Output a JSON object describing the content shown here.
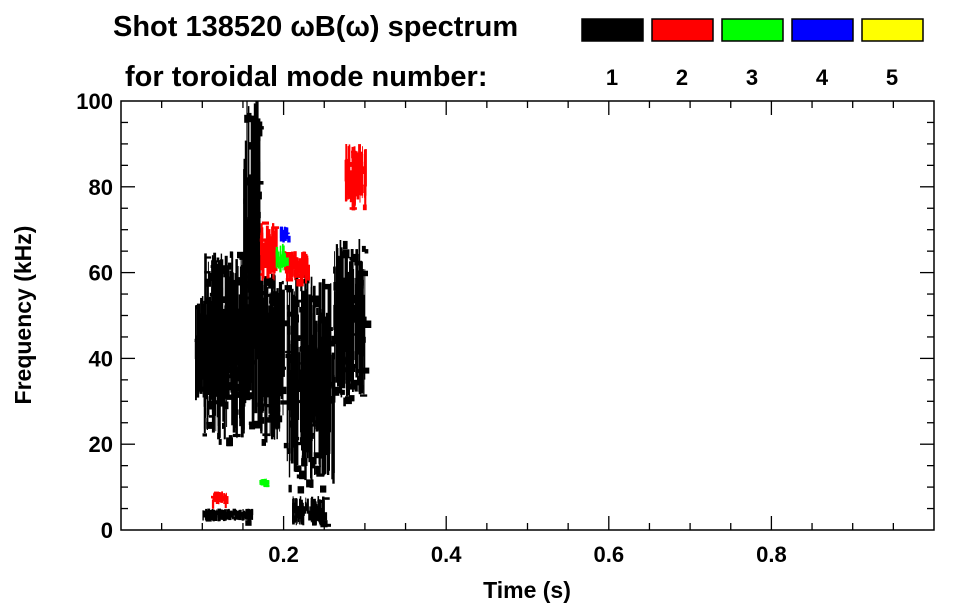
{
  "chart_data": {
    "type": "heatmap",
    "title": "Shot 138520 ωB(ω) spectrum",
    "subtitle": "for toroidal mode number:",
    "xlabel": "Time (s)",
    "ylabel": "Frequency (kHz)",
    "xlim": [
      0.0,
      1.0
    ],
    "ylim": [
      0,
      100
    ],
    "x_ticks": [
      {
        "value": 0.2,
        "label": "0.2"
      },
      {
        "value": 0.4,
        "label": "0.4"
      },
      {
        "value": 0.6,
        "label": "0.6"
      },
      {
        "value": 0.8,
        "label": "0.8"
      }
    ],
    "y_ticks": [
      {
        "value": 0,
        "label": "0"
      },
      {
        "value": 20,
        "label": "20"
      },
      {
        "value": 40,
        "label": "40"
      },
      {
        "value": 60,
        "label": "60"
      },
      {
        "value": 80,
        "label": "80"
      },
      {
        "value": 100,
        "label": "100"
      }
    ],
    "grid": false,
    "legend_placement": "top-right",
    "legend": [
      {
        "label": "1",
        "color": "#000000"
      },
      {
        "label": "2",
        "color": "#ff0000"
      },
      {
        "label": "3",
        "color": "#00ff00"
      },
      {
        "label": "4",
        "color": "#0000ff"
      },
      {
        "label": "5",
        "color": "#ffff00"
      }
    ],
    "series": [
      {
        "mode": 1,
        "color": "#000000",
        "regions": [
          {
            "t0": 0.09,
            "t1": 0.16,
            "f0": 30,
            "f1": 55
          },
          {
            "t0": 0.1,
            "t1": 0.15,
            "f0": 21,
            "f1": 65
          },
          {
            "t0": 0.15,
            "t1": 0.17,
            "f0": 25,
            "f1": 100
          },
          {
            "t0": 0.17,
            "t1": 0.2,
            "f0": 20,
            "f1": 60
          },
          {
            "t0": 0.2,
            "t1": 0.26,
            "f0": 10,
            "f1": 60
          },
          {
            "t0": 0.26,
            "t1": 0.3,
            "f0": 30,
            "f1": 68
          },
          {
            "t0": 0.1,
            "t1": 0.16,
            "f0": 2,
            "f1": 5
          },
          {
            "t0": 0.21,
            "t1": 0.25,
            "f0": 1,
            "f1": 8
          }
        ]
      },
      {
        "mode": 2,
        "color": "#ff0000",
        "regions": [
          {
            "t0": 0.275,
            "t1": 0.3,
            "f0": 75,
            "f1": 90
          },
          {
            "t0": 0.17,
            "t1": 0.19,
            "f0": 58,
            "f1": 72
          },
          {
            "t0": 0.2,
            "t1": 0.23,
            "f0": 58,
            "f1": 65
          },
          {
            "t0": 0.11,
            "t1": 0.13,
            "f0": 6,
            "f1": 9
          }
        ]
      },
      {
        "mode": 3,
        "color": "#00ff00",
        "regions": [
          {
            "t0": 0.19,
            "t1": 0.2,
            "f0": 60,
            "f1": 67
          },
          {
            "t0": 0.17,
            "t1": 0.18,
            "f0": 10,
            "f1": 12
          }
        ]
      },
      {
        "mode": 4,
        "color": "#0000ff",
        "regions": [
          {
            "t0": 0.195,
            "t1": 0.205,
            "f0": 67,
            "f1": 71
          }
        ]
      },
      {
        "mode": 5,
        "color": "#ffff00",
        "regions": []
      }
    ]
  }
}
